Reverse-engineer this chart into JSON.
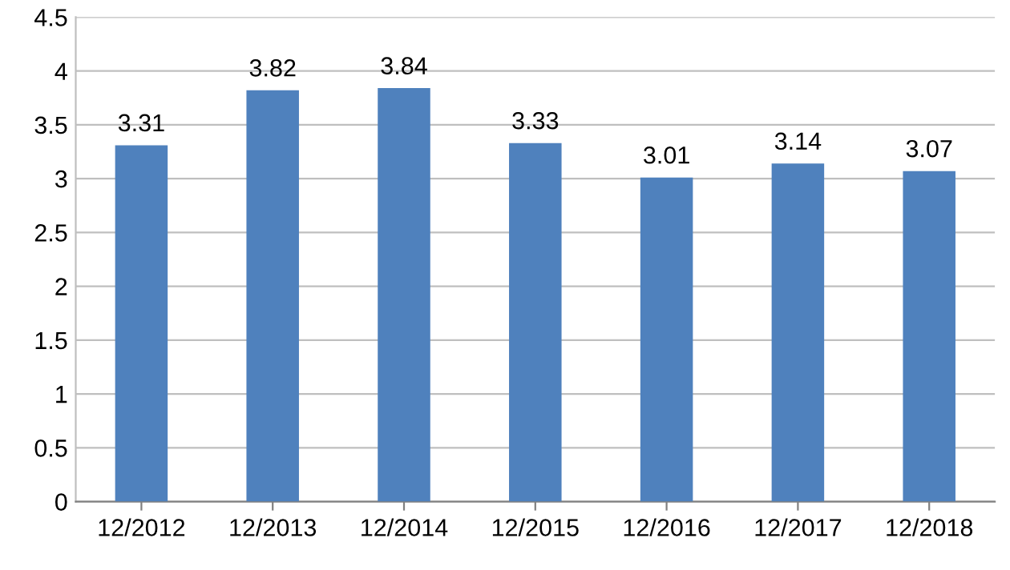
{
  "chart_data": {
    "type": "bar",
    "categories": [
      "12/2012",
      "12/2013",
      "12/2014",
      "12/2015",
      "12/2016",
      "12/2017",
      "12/2018"
    ],
    "values": [
      3.31,
      3.82,
      3.84,
      3.33,
      3.01,
      3.14,
      3.07
    ],
    "color": "#4f81bd",
    "ylim": [
      0,
      4.5
    ],
    "yticks": [
      0,
      0.5,
      1,
      1.5,
      2,
      2.5,
      3,
      3.5,
      4,
      4.5
    ],
    "grid": "y",
    "data_labels": true
  }
}
